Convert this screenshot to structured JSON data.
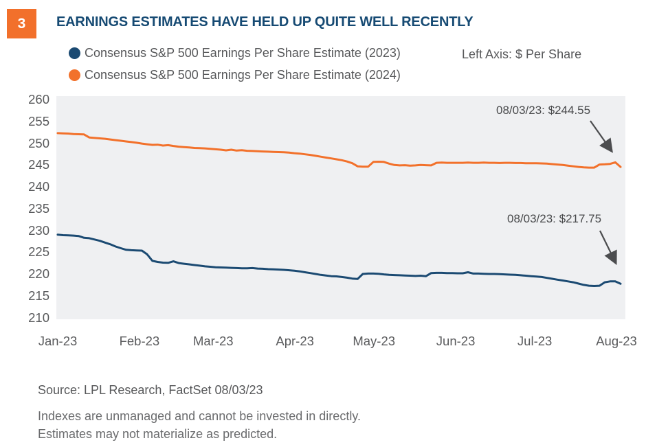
{
  "figure_number": "3",
  "title": "EARNINGS ESTIMATES HAVE HELD UP QUITE WELL RECENTLY",
  "axis_note": "Left Axis: $ Per Share",
  "source": "Source: LPL Research, FactSet  08/03/23",
  "disclosures": {
    "line1": "Indexes are unmanaged and cannot be invested in directly.",
    "line2": "Estimates may not materialize as predicted."
  },
  "colors": {
    "badge_orange": "#F2702B",
    "title_navy": "#164A73",
    "series_2023_blue": "#1B4A72",
    "series_2024_orange": "#F2712B",
    "panel_gray": "#EFF0F2",
    "arrow_gray": "#4C4D4F",
    "text_gray": "#57585A"
  },
  "chart_data": {
    "type": "line",
    "title": "EARNINGS ESTIMATES HAVE HELD UP QUITE WELL RECENTLY",
    "xlabel": "",
    "ylabel": "Left Axis: $ Per Share",
    "x_tick_labels": [
      "Jan-23",
      "Feb-23",
      "Mar-23",
      "Apr-23",
      "May-23",
      "Jun-23",
      "Jul-23",
      "Aug-23"
    ],
    "x_tick_day_offsets": [
      0,
      31,
      59,
      90,
      120,
      151,
      181,
      212
    ],
    "y_ticks": [
      260,
      255,
      250,
      245,
      240,
      235,
      230,
      225,
      220,
      215,
      210
    ],
    "ylim": [
      209,
      261
    ],
    "grid": false,
    "legend_position": "top-left",
    "series": [
      {
        "name": "Consensus S&P 500 Earnings Per Share Estimate (2023)",
        "color": "#1B4A72",
        "final_value": 217.75,
        "final_date": "08/03/23",
        "values": [
          229.0,
          228.9,
          228.85,
          228.8,
          228.7,
          228.3,
          228.2,
          227.9,
          227.6,
          227.2,
          226.8,
          226.3,
          225.9,
          225.55,
          225.45,
          225.4,
          225.35,
          224.5,
          223.0,
          222.75,
          222.6,
          222.55,
          222.9,
          222.5,
          222.35,
          222.2,
          222.05,
          221.9,
          221.75,
          221.65,
          221.55,
          221.5,
          221.45,
          221.4,
          221.35,
          221.3,
          221.3,
          221.35,
          221.25,
          221.2,
          221.1,
          221.05,
          221.0,
          220.95,
          220.85,
          220.75,
          220.6,
          220.4,
          220.2,
          220.0,
          219.8,
          219.65,
          219.5,
          219.45,
          219.3,
          219.15,
          218.95,
          218.85,
          220.0,
          220.1,
          220.1,
          220.05,
          219.9,
          219.8,
          219.75,
          219.7,
          219.65,
          219.6,
          219.55,
          219.6,
          219.5,
          220.2,
          220.25,
          220.25,
          220.2,
          220.2,
          220.15,
          220.15,
          220.4,
          220.1,
          220.1,
          220.05,
          220.0,
          220.0,
          219.95,
          219.9,
          219.85,
          219.8,
          219.7,
          219.6,
          219.5,
          219.4,
          219.3,
          219.1,
          218.9,
          218.7,
          218.5,
          218.3,
          218.1,
          217.8,
          217.5,
          217.3,
          217.25,
          217.3,
          218.1,
          218.3,
          218.3,
          217.75
        ]
      },
      {
        "name": "Consensus S&P 500 Earnings Per Share Estimate (2024)",
        "color": "#F2712B",
        "final_value": 244.55,
        "final_date": "08/03/23",
        "values": [
          252.3,
          252.25,
          252.2,
          252.1,
          252.05,
          252.0,
          251.3,
          251.2,
          251.1,
          251.0,
          250.85,
          250.7,
          250.55,
          250.4,
          250.25,
          250.1,
          249.9,
          249.75,
          249.6,
          249.65,
          249.45,
          249.55,
          249.35,
          249.2,
          249.1,
          249.0,
          248.9,
          248.85,
          248.8,
          248.7,
          248.6,
          248.5,
          248.35,
          248.5,
          248.3,
          248.4,
          248.25,
          248.2,
          248.15,
          248.1,
          248.05,
          248.0,
          247.95,
          247.9,
          247.85,
          247.7,
          247.6,
          247.45,
          247.3,
          247.1,
          246.9,
          246.7,
          246.5,
          246.3,
          246.1,
          245.8,
          245.4,
          244.7,
          244.6,
          244.6,
          245.7,
          245.75,
          245.7,
          245.3,
          245.0,
          244.9,
          244.95,
          244.85,
          244.9,
          245.0,
          244.95,
          244.9,
          245.5,
          245.55,
          245.5,
          245.5,
          245.5,
          245.5,
          245.55,
          245.5,
          245.5,
          245.55,
          245.5,
          245.5,
          245.45,
          245.5,
          245.5,
          245.45,
          245.45,
          245.4,
          245.4,
          245.4,
          245.35,
          245.3,
          245.2,
          245.1,
          245.0,
          244.85,
          244.7,
          244.55,
          244.45,
          244.4,
          244.4,
          245.1,
          245.15,
          245.25,
          245.6,
          244.55
        ]
      }
    ],
    "annotations": [
      {
        "label": "08/03/23: $244.55",
        "series": "2024"
      },
      {
        "label": "08/03/23: $217.75",
        "series": "2023"
      }
    ]
  }
}
